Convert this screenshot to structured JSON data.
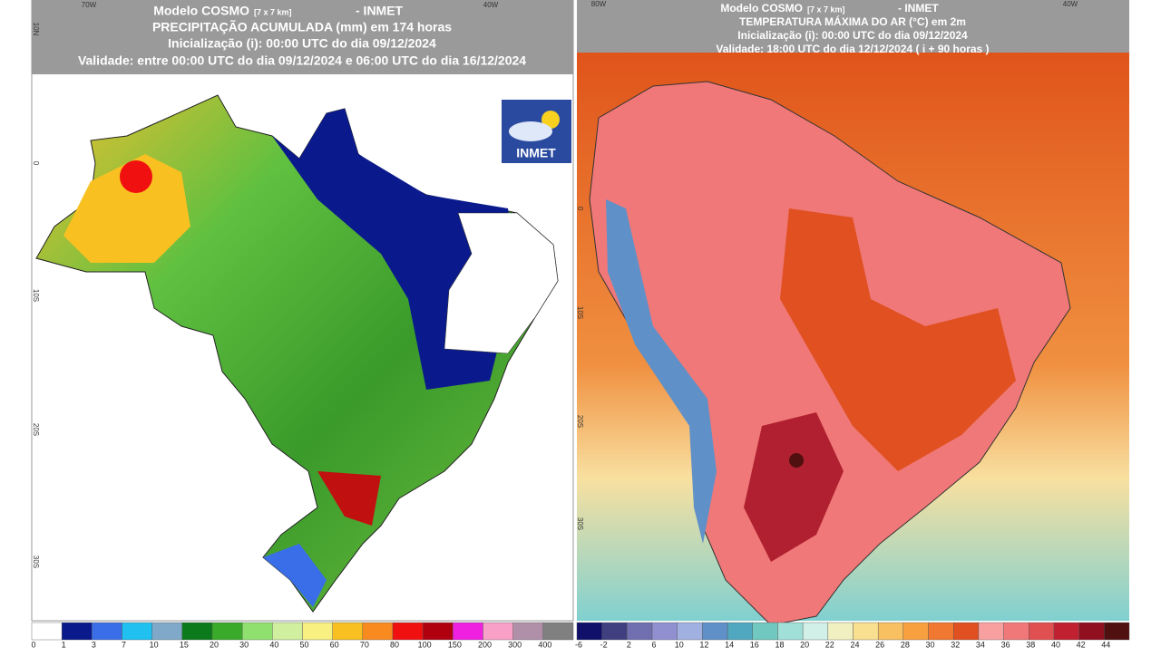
{
  "left_panel": {
    "model": "Modelo COSMO",
    "resolution": "[7 x 7 km]",
    "source": "- INMET",
    "lines": [
      "PRECIPITAÇÃO ACUMULADA (mm) em 174 horas",
      "Inicialização (i): 00:00 UTC do dia 09/12/2024",
      "Validade: entre 00:00 UTC do dia 09/12/2024 e 06:00 UTC do dia 16/12/2024"
    ],
    "logo": "INMET",
    "lon_labels": [
      "70W",
      "40W"
    ],
    "lat_labels": [
      "10N",
      "0",
      "10S",
      "20S",
      "30S"
    ],
    "colorbar": {
      "labels": [
        0,
        1,
        3,
        7,
        10,
        15,
        20,
        30,
        40,
        50,
        60,
        70,
        80,
        100,
        150,
        200,
        300,
        400
      ],
      "colors": [
        "#ffffff",
        "#0a1a8c",
        "#3a6ee8",
        "#20c0f0",
        "#80a8c8",
        "#0a7a1a",
        "#3aaa2a",
        "#90e070",
        "#d0f0a0",
        "#f8f080",
        "#f8c020",
        "#f88a20",
        "#f01010",
        "#b00010",
        "#f020e0",
        "#f8a0c8",
        "#b090a8",
        "#808080"
      ]
    }
  },
  "right_panel": {
    "model": "Modelo COSMO",
    "resolution": "[7 x 7 km]",
    "source": "- INMET",
    "lines": [
      "TEMPERATURA MÁXIMA DO AR (°C) em 2m",
      "Inicialização (i): 00:00 UTC do dia 09/12/2024",
      "Validade: 18:00 UTC do dia 12/12/2024 ( i + 90 horas )"
    ],
    "lon_labels": [
      "80W",
      "40W"
    ],
    "lat_labels": [
      "0",
      "10S",
      "20S",
      "30S"
    ],
    "colorbar": {
      "labels": [
        -6,
        -2,
        2,
        6,
        10,
        12,
        14,
        16,
        18,
        20,
        22,
        24,
        26,
        28,
        30,
        32,
        34,
        36,
        38,
        40,
        42,
        44
      ],
      "colors": [
        "#10106a",
        "#404080",
        "#7070b0",
        "#9090d0",
        "#a0b0e0",
        "#6090c8",
        "#50a8c0",
        "#70c8c0",
        "#a0e0d8",
        "#d0f0e8",
        "#f0f0c0",
        "#f8e090",
        "#f8c060",
        "#f8a040",
        "#f07830",
        "#e05020",
        "#f8a0a0",
        "#f07878",
        "#e05050",
        "#c02030",
        "#901020",
        "#501010"
      ]
    }
  }
}
